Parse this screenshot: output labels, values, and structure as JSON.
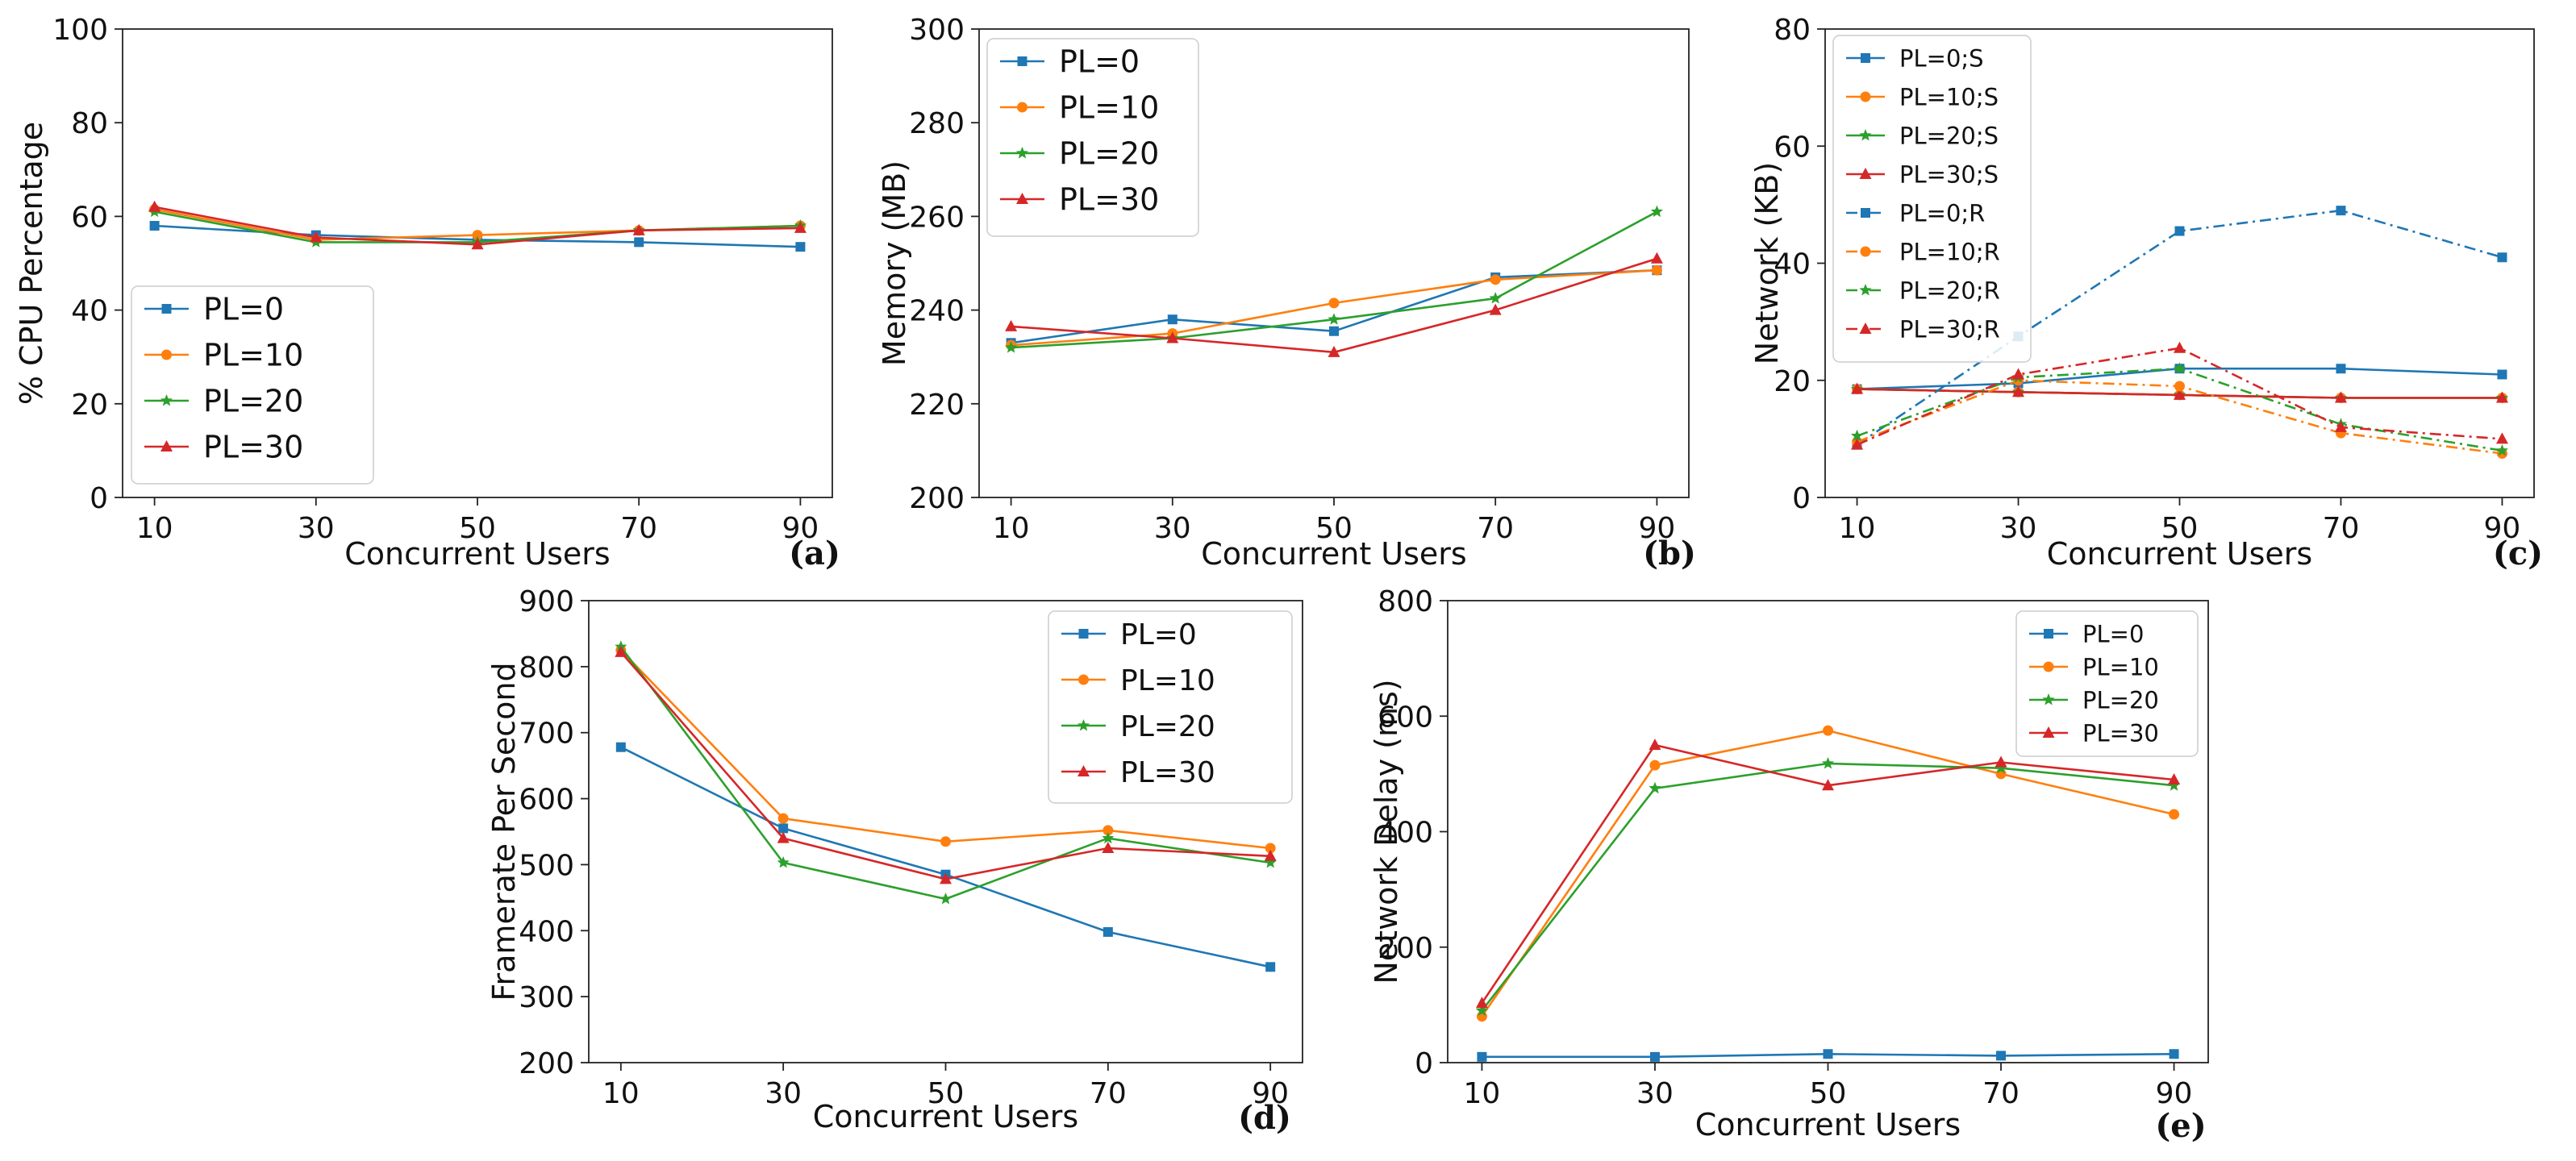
{
  "colors": {
    "PL=0": "#1f77b4",
    "PL=10": "#ff7f0e",
    "PL=20": "#2ca02c",
    "PL=30": "#d62728"
  },
  "chart_data": [
    {
      "id": "a",
      "type": "line",
      "panel_label": "(a)",
      "xlabel": "Concurrent Users",
      "ylabel": "% CPU Percentage",
      "x": [
        10,
        30,
        50,
        70,
        90
      ],
      "ylim": [
        0,
        100
      ],
      "yticks": [
        0,
        20,
        40,
        60,
        80,
        100
      ],
      "legend": "lower-left",
      "series": [
        {
          "name": "PL=0",
          "values": [
            58,
            56,
            55,
            54.5,
            53.5
          ],
          "marker": "square",
          "dash": false
        },
        {
          "name": "PL=10",
          "values": [
            61.5,
            55,
            56,
            57,
            58
          ],
          "marker": "circle",
          "dash": false
        },
        {
          "name": "PL=20",
          "values": [
            61,
            54.5,
            54.5,
            57,
            58
          ],
          "marker": "star",
          "dash": false
        },
        {
          "name": "PL=30",
          "values": [
            62,
            55.5,
            54,
            57,
            57.5
          ],
          "marker": "triangle",
          "dash": false
        }
      ]
    },
    {
      "id": "b",
      "type": "line",
      "panel_label": "(b)",
      "xlabel": "Concurrent Users",
      "ylabel": "Memory (MB)",
      "x": [
        10,
        30,
        50,
        70,
        90
      ],
      "ylim": [
        200,
        300
      ],
      "yticks": [
        200,
        220,
        240,
        260,
        280,
        300
      ],
      "legend": "upper-left",
      "series": [
        {
          "name": "PL=0",
          "values": [
            233,
            238,
            235.5,
            247,
            248.5
          ],
          "marker": "square",
          "dash": false
        },
        {
          "name": "PL=10",
          "values": [
            232.5,
            235,
            241.5,
            246.5,
            248.5
          ],
          "marker": "circle",
          "dash": false
        },
        {
          "name": "PL=20",
          "values": [
            232,
            234,
            238,
            242.5,
            261
          ],
          "marker": "star",
          "dash": false
        },
        {
          "name": "PL=30",
          "values": [
            236.5,
            234,
            231,
            240,
            251
          ],
          "marker": "triangle",
          "dash": false
        }
      ]
    },
    {
      "id": "c",
      "type": "line",
      "panel_label": "(c)",
      "xlabel": "Concurrent Users",
      "ylabel": "Network (KB)",
      "x": [
        10,
        30,
        50,
        70,
        90
      ],
      "ylim": [
        0,
        80
      ],
      "yticks": [
        0,
        20,
        40,
        60,
        80
      ],
      "legend": "upper-left",
      "series": [
        {
          "name": "PL=0;S",
          "values": [
            18.5,
            19.5,
            22,
            22,
            21
          ],
          "marker": "square",
          "dash": false
        },
        {
          "name": "PL=10;S",
          "values": [
            18.5,
            18,
            17.5,
            17,
            17
          ],
          "marker": "circle",
          "dash": false
        },
        {
          "name": "PL=20;S",
          "values": [
            18.5,
            18,
            17.5,
            17,
            17
          ],
          "marker": "star",
          "dash": false
        },
        {
          "name": "PL=30;S",
          "values": [
            18.5,
            18,
            17.5,
            17,
            17
          ],
          "marker": "triangle",
          "dash": false
        },
        {
          "name": "PL=0;R",
          "values": [
            9,
            27.5,
            45.5,
            49,
            41
          ],
          "marker": "square",
          "dash": true
        },
        {
          "name": "PL=10;R",
          "values": [
            9.5,
            20,
            19,
            11,
            7.5
          ],
          "marker": "circle",
          "dash": true
        },
        {
          "name": "PL=20;R",
          "values": [
            10.5,
            20.5,
            22,
            12.5,
            8
          ],
          "marker": "star",
          "dash": true
        },
        {
          "name": "PL=30;R",
          "values": [
            9,
            21,
            25.5,
            12,
            10
          ],
          "marker": "triangle",
          "dash": true
        }
      ]
    },
    {
      "id": "d",
      "type": "line",
      "panel_label": "(d)",
      "xlabel": "Concurrent Users",
      "ylabel": "Framerate Per Second",
      "x": [
        10,
        30,
        50,
        70,
        90
      ],
      "ylim": [
        200,
        900
      ],
      "yticks": [
        200,
        300,
        400,
        500,
        600,
        700,
        800,
        900
      ],
      "legend": "upper-right",
      "series": [
        {
          "name": "PL=0",
          "values": [
            678,
            555,
            485,
            398,
            345
          ],
          "marker": "square",
          "dash": false
        },
        {
          "name": "PL=10",
          "values": [
            825,
            570,
            535,
            552,
            525
          ],
          "marker": "circle",
          "dash": false
        },
        {
          "name": "PL=20",
          "values": [
            830,
            503,
            448,
            540,
            503
          ],
          "marker": "star",
          "dash": false
        },
        {
          "name": "PL=30",
          "values": [
            822,
            540,
            478,
            525,
            513
          ],
          "marker": "triangle",
          "dash": false
        }
      ]
    },
    {
      "id": "e",
      "type": "line",
      "panel_label": "(e)",
      "xlabel": "Concurrent Users",
      "ylabel": "Network Delay (ms)",
      "x": [
        10,
        30,
        50,
        70,
        90
      ],
      "ylim": [
        0,
        800
      ],
      "yticks": [
        0,
        200,
        400,
        600,
        800
      ],
      "legend": "upper-right",
      "series": [
        {
          "name": "PL=0",
          "values": [
            10,
            10,
            15,
            12,
            15
          ],
          "marker": "square",
          "dash": false
        },
        {
          "name": "PL=10",
          "values": [
            80,
            515,
            575,
            500,
            430
          ],
          "marker": "circle",
          "dash": false
        },
        {
          "name": "PL=20",
          "values": [
            90,
            475,
            518,
            510,
            480
          ],
          "marker": "star",
          "dash": false
        },
        {
          "name": "PL=30",
          "values": [
            103,
            550,
            480,
            520,
            490
          ],
          "marker": "triangle",
          "dash": false
        }
      ]
    }
  ]
}
